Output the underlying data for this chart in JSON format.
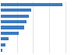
{
  "values": [
    3800,
    1900,
    1750,
    1600,
    1450,
    1100,
    500,
    280,
    120
  ],
  "bar_color": "#3a7bbf",
  "background_color": "#ffffff",
  "grid_color": "#d9d9d9",
  "xlim": [
    0,
    4200
  ],
  "bar_height": 0.55,
  "figwidth": 1.0,
  "figheight": 0.71,
  "dpi": 100
}
